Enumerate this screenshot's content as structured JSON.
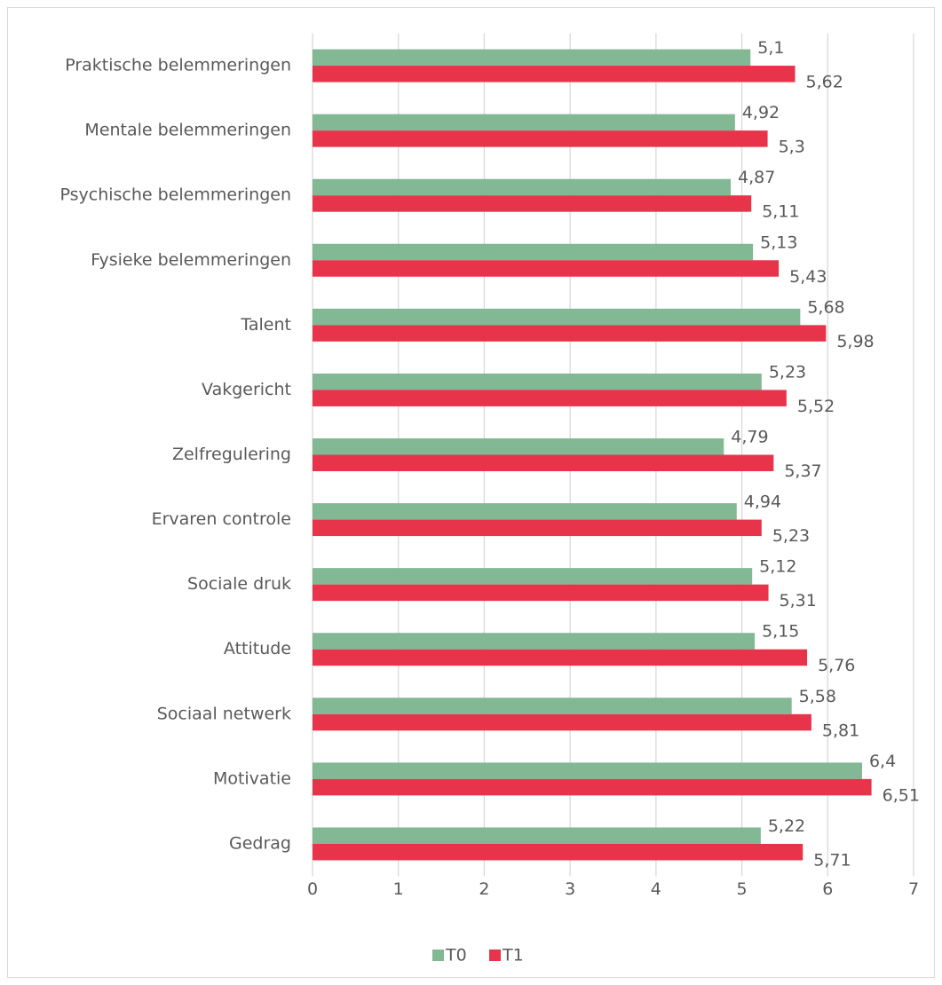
{
  "chart_data": {
    "type": "bar",
    "orientation": "horizontal",
    "categories": [
      "Praktische belemmeringen",
      "Mentale belemmeringen",
      "Psychische belemmeringen",
      "Fysieke belemmeringen",
      "Talent",
      "Vakgericht",
      "Zelfregulering",
      "Ervaren controle",
      "Sociale druk",
      "Attitude",
      "Sociaal netwerk",
      "Motivatie",
      "Gedrag"
    ],
    "series": [
      {
        "name": "T0",
        "color": "#82b894",
        "values": [
          5.1,
          4.92,
          4.87,
          5.13,
          5.68,
          5.23,
          4.79,
          4.94,
          5.12,
          5.15,
          5.58,
          6.4,
          5.22
        ],
        "value_labels": [
          "5,1",
          "4,92",
          "4,87",
          "5,13",
          "5,68",
          "5,23",
          "4,79",
          "4,94",
          "5,12",
          "5,15",
          "5,58",
          "6,4",
          "5,22"
        ]
      },
      {
        "name": "T1",
        "color": "#e8344a",
        "values": [
          5.62,
          5.3,
          5.11,
          5.43,
          5.98,
          5.52,
          5.37,
          5.23,
          5.31,
          5.76,
          5.81,
          6.51,
          5.71
        ],
        "value_labels": [
          "5,62",
          "5,3",
          "5,11",
          "5,43",
          "5,98",
          "5,52",
          "5,37",
          "5,23",
          "5,31",
          "5,76",
          "5,81",
          "6,51",
          "5,71"
        ]
      }
    ],
    "xlim": [
      0,
      7
    ],
    "xticks": [
      0,
      1,
      2,
      3,
      4,
      5,
      6,
      7
    ],
    "grid": true,
    "legend": "bottom"
  }
}
